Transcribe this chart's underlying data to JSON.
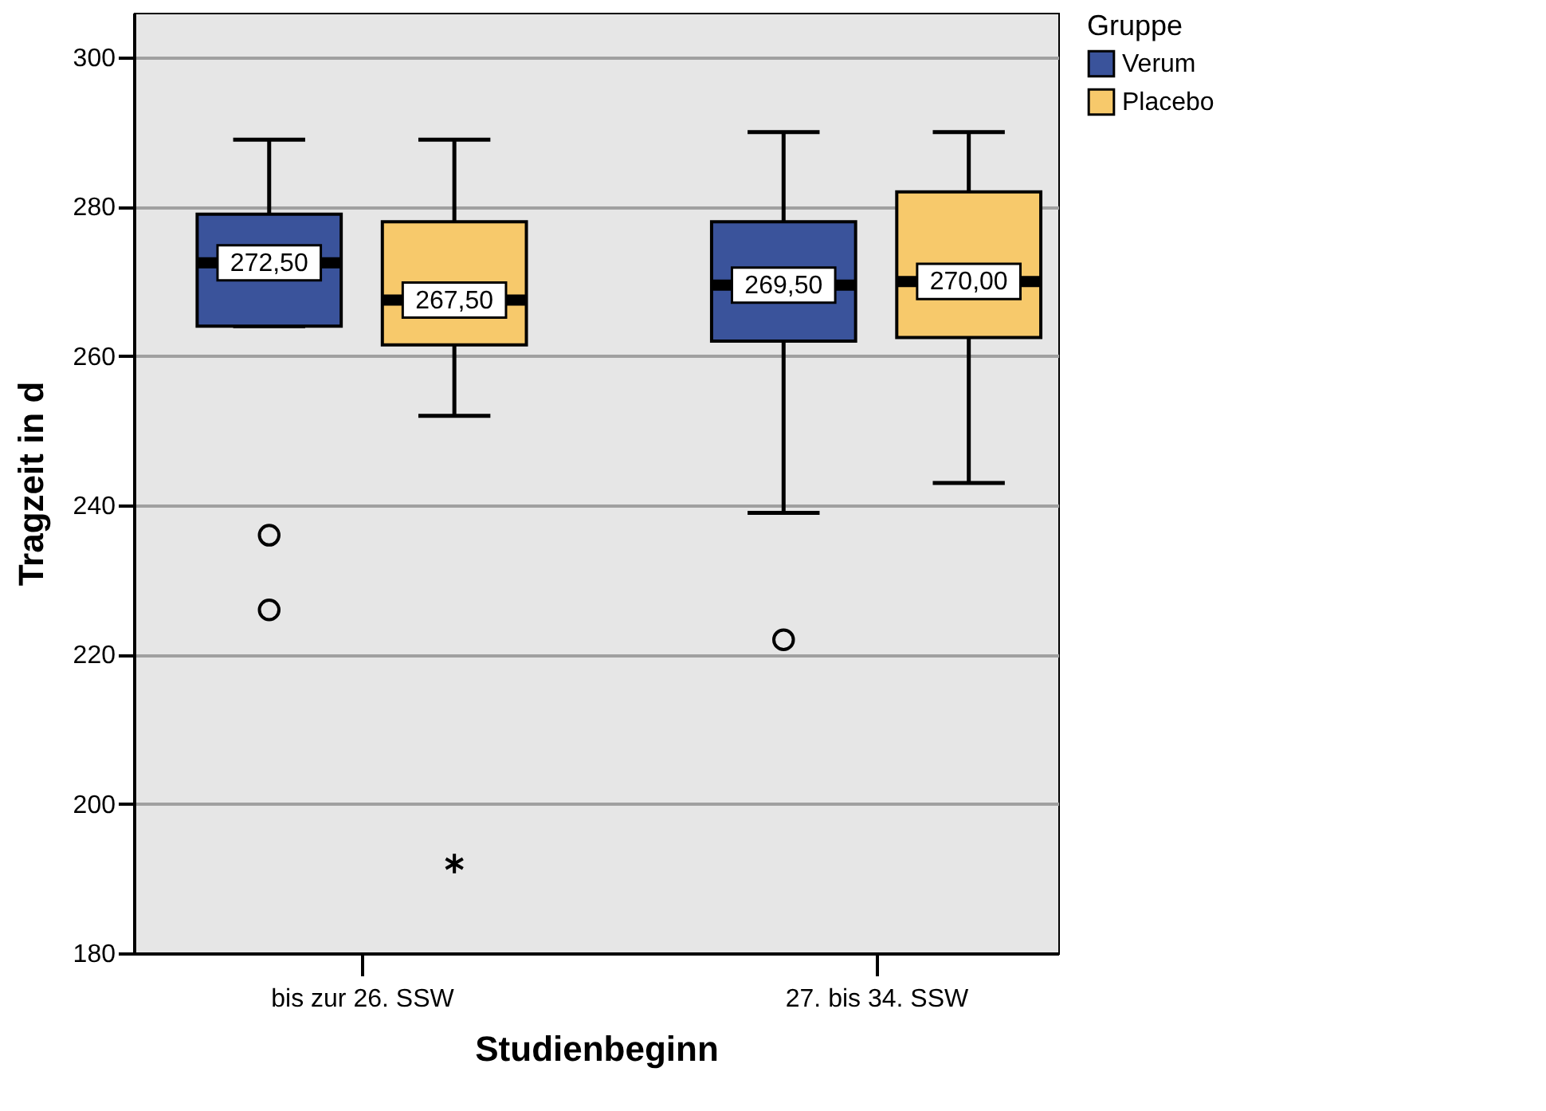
{
  "chart_data": {
    "type": "box",
    "xlabel": "Studienbeginn",
    "ylabel": "Tragzeit in d",
    "legend_title": "Gruppe",
    "legend": "right",
    "grid": "y",
    "categories": [
      "bis zur 26. SSW",
      "27. bis 34. SSW"
    ],
    "ylim": [
      180,
      306
    ],
    "yticks": [
      180,
      200,
      220,
      240,
      260,
      280,
      300
    ],
    "series": [
      {
        "name": "Verum",
        "color": "#3a539b",
        "boxes": [
          {
            "low": 264,
            "q1": 264,
            "median": 272.5,
            "q3": 279,
            "high": 289,
            "outliers": [
              236,
              226
            ]
          },
          {
            "low": 239,
            "q1": 262,
            "median": 269.5,
            "q3": 278,
            "high": 290,
            "outliers": [
              222
            ]
          }
        ],
        "value_labels": [
          "272,50",
          "269,50"
        ]
      },
      {
        "name": "Placebo",
        "color": "#f7c96b",
        "boxes": [
          {
            "low": 252,
            "q1": 261.5,
            "median": 267.5,
            "q3": 278,
            "high": 289,
            "outliers": [
              192
            ]
          },
          {
            "low": 243,
            "q1": 262.5,
            "median": 270,
            "q3": 282,
            "high": 290
          }
        ],
        "value_labels": [
          "267,50",
          "270,00"
        ]
      }
    ]
  }
}
